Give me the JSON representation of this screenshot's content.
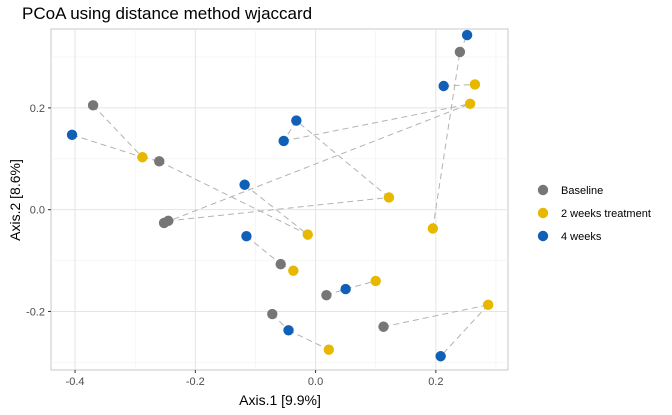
{
  "chart_data": {
    "type": "scatter",
    "title": "PCoA using distance method wjaccard",
    "xlabel": "Axis.1   [9.9%]",
    "ylabel": "Axis.2   [8.6%]",
    "xlim": [
      -0.44,
      0.32
    ],
    "ylim": [
      -0.315,
      0.355
    ],
    "x_ticks": [
      -0.4,
      -0.2,
      0.0,
      0.2
    ],
    "x_tick_labels": [
      "-0.4",
      "-0.2",
      "0.0",
      "0.2"
    ],
    "y_ticks": [
      -0.2,
      0.0,
      0.2
    ],
    "y_tick_labels": [
      "-0.2",
      "0.0",
      "0.2"
    ],
    "grid": true,
    "legend_position": "right",
    "series": [
      {
        "name": "Baseline",
        "color": "#767676",
        "points": [
          {
            "id": 1,
            "x": -0.37,
            "y": 0.205
          },
          {
            "id": 2,
            "x": -0.26,
            "y": 0.095
          },
          {
            "id": 3,
            "x": -0.245,
            "y": -0.022
          },
          {
            "id": 4,
            "x": -0.252,
            "y": -0.026
          },
          {
            "id": 5,
            "x": -0.058,
            "y": -0.107
          },
          {
            "id": 6,
            "x": 0.018,
            "y": -0.168
          },
          {
            "id": 7,
            "x": -0.072,
            "y": -0.205
          },
          {
            "id": 8,
            "x": 0.113,
            "y": -0.23
          },
          {
            "id": 9,
            "x": 0.24,
            "y": 0.31
          }
        ]
      },
      {
        "name": "2 weeks treatment",
        "color": "#E7B800",
        "points": [
          {
            "id": 1,
            "x": -0.288,
            "y": 0.103
          },
          {
            "id": 2,
            "x": 0.122,
            "y": 0.024
          },
          {
            "id": 3,
            "x": -0.013,
            "y": -0.049
          },
          {
            "id": 4,
            "x": 0.195,
            "y": -0.037
          },
          {
            "id": 5,
            "x": -0.037,
            "y": -0.12
          },
          {
            "id": 6,
            "x": 0.1,
            "y": -0.14
          },
          {
            "id": 7,
            "x": 0.287,
            "y": -0.187
          },
          {
            "id": 8,
            "x": 0.022,
            "y": -0.275
          },
          {
            "id": 9,
            "x": 0.265,
            "y": 0.246
          },
          {
            "id": 10,
            "x": 0.257,
            "y": 0.208
          }
        ]
      },
      {
        "name": "4 weeks",
        "color": "#1060B8",
        "points": [
          {
            "id": 1,
            "x": -0.405,
            "y": 0.147
          },
          {
            "id": 2,
            "x": -0.032,
            "y": 0.175
          },
          {
            "id": 3,
            "x": -0.053,
            "y": 0.135
          },
          {
            "id": 4,
            "x": -0.118,
            "y": 0.049
          },
          {
            "id": 5,
            "x": -0.115,
            "y": -0.052
          },
          {
            "id": 6,
            "x": 0.05,
            "y": -0.156
          },
          {
            "id": 7,
            "x": -0.045,
            "y": -0.237
          },
          {
            "id": 8,
            "x": 0.208,
            "y": -0.288
          },
          {
            "id": 9,
            "x": 0.213,
            "y": 0.243
          },
          {
            "id": 10,
            "x": 0.252,
            "y": 0.343
          }
        ]
      }
    ],
    "connections": [
      {
        "from": [
          -0.37,
          0.205
        ],
        "to": [
          -0.288,
          0.103
        ]
      },
      {
        "from": [
          -0.405,
          0.147
        ],
        "to": [
          -0.288,
          0.103
        ]
      },
      {
        "from": [
          -0.288,
          0.103
        ],
        "to": [
          -0.26,
          0.095
        ]
      },
      {
        "from": [
          -0.26,
          0.095
        ],
        "to": [
          -0.013,
          -0.049
        ]
      },
      {
        "from": [
          -0.252,
          -0.026
        ],
        "to": [
          0.257,
          0.208
        ]
      },
      {
        "from": [
          -0.245,
          -0.022
        ],
        "to": [
          0.122,
          0.024
        ]
      },
      {
        "from": [
          0.122,
          0.024
        ],
        "to": [
          -0.032,
          0.175
        ]
      },
      {
        "from": [
          -0.032,
          0.175
        ],
        "to": [
          -0.053,
          0.135
        ]
      },
      {
        "from": [
          -0.053,
          0.135
        ],
        "to": [
          0.257,
          0.208
        ]
      },
      {
        "from": [
          -0.115,
          -0.052
        ],
        "to": [
          -0.058,
          -0.107
        ]
      },
      {
        "from": [
          -0.058,
          -0.107
        ],
        "to": [
          -0.037,
          -0.12
        ]
      },
      {
        "from": [
          0.018,
          -0.168
        ],
        "to": [
          0.05,
          -0.156
        ]
      },
      {
        "from": [
          0.05,
          -0.156
        ],
        "to": [
          0.1,
          -0.14
        ]
      },
      {
        "from": [
          -0.072,
          -0.205
        ],
        "to": [
          -0.045,
          -0.237
        ]
      },
      {
        "from": [
          -0.045,
          -0.237
        ],
        "to": [
          0.022,
          -0.275
        ]
      },
      {
        "from": [
          0.113,
          -0.23
        ],
        "to": [
          0.287,
          -0.187
        ]
      },
      {
        "from": [
          0.287,
          -0.187
        ],
        "to": [
          0.208,
          -0.288
        ]
      },
      {
        "from": [
          0.195,
          -0.037
        ],
        "to": [
          0.24,
          0.31
        ]
      },
      {
        "from": [
          0.24,
          0.31
        ],
        "to": [
          0.252,
          0.343
        ]
      },
      {
        "from": [
          0.213,
          0.243
        ],
        "to": [
          0.265,
          0.246
        ]
      },
      {
        "from": [
          -0.118,
          0.049
        ],
        "to": [
          -0.013,
          -0.049
        ]
      }
    ]
  }
}
